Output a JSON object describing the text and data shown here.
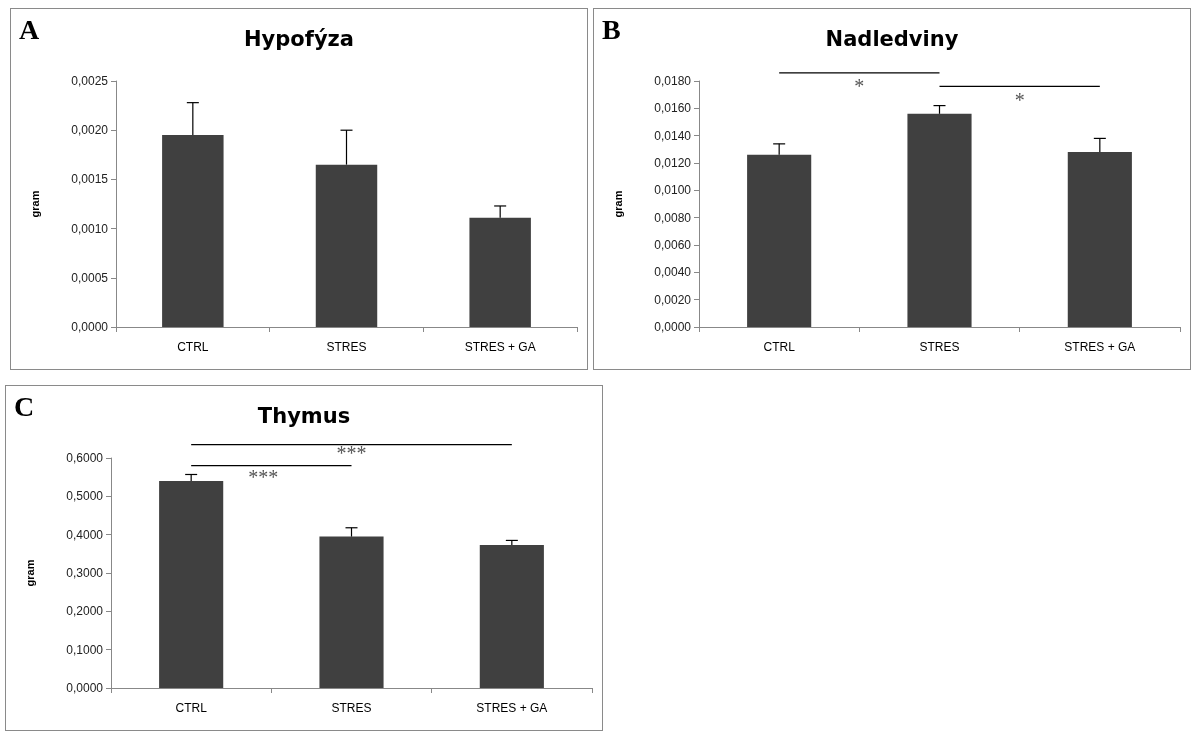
{
  "chart_data": [
    {
      "type": "bar",
      "title": "Hypofýza",
      "ylabel": "gram",
      "annotations": [
        "A"
      ],
      "categories": [
        "CTRL",
        "STRES",
        "STRES + GA"
      ],
      "values": [
        0.00195,
        0.00165,
        0.00111
      ],
      "errors": [
        [
          0.00195,
          0.00228
        ],
        [
          0.00165,
          0.002
        ],
        [
          0.00111,
          0.00123
        ]
      ],
      "color": "#404040",
      "ylim": [
        0,
        0.0025
      ],
      "yticks": [
        {
          "value": 0,
          "label": "0,0000"
        },
        {
          "value": 0.0005,
          "label": "0,0005"
        },
        {
          "value": 0.001,
          "label": "0,0010"
        },
        {
          "value": 0.0015,
          "label": "0,0015"
        },
        {
          "value": 0.002,
          "label": "0,0020"
        },
        {
          "value": 0.0025,
          "label": "0,0025"
        }
      ],
      "grid": false
    },
    {
      "type": "bar",
      "title": "Nadledviny",
      "ylabel": "gram",
      "annotations": [
        "B",
        "*",
        "*"
      ],
      "categories": [
        "CTRL",
        "STRES",
        "STRES + GA"
      ],
      "values": [
        0.0126,
        0.0156,
        0.0128
      ],
      "errors": [
        [
          0.0126,
          0.0134
        ],
        [
          0.0156,
          0.0162
        ],
        [
          0.0128,
          0.0138
        ]
      ],
      "color": "#404040",
      "ylim": [
        0,
        0.018
      ],
      "yticks": [
        {
          "value": 0,
          "label": "0,0000"
        },
        {
          "value": 0.002,
          "label": "0,0020"
        },
        {
          "value": 0.004,
          "label": "0,0040"
        },
        {
          "value": 0.006,
          "label": "0,0060"
        },
        {
          "value": 0.008,
          "label": "0,0080"
        },
        {
          "value": 0.01,
          "label": "0,0100"
        },
        {
          "value": 0.012,
          "label": "0,0120"
        },
        {
          "value": 0.014,
          "label": "0,0140"
        },
        {
          "value": 0.016,
          "label": "0,0160"
        },
        {
          "value": 0.018,
          "label": "0,0180"
        }
      ],
      "grid": false
    },
    {
      "type": "bar",
      "title": "Thymus",
      "ylabel": "gram",
      "annotations": [
        "C",
        "***",
        "***"
      ],
      "categories": [
        "CTRL",
        "STRES",
        "STRES + GA"
      ],
      "values": [
        0.54,
        0.395,
        0.373
      ],
      "errors": [
        [
          0.54,
          0.557
        ],
        [
          0.395,
          0.418
        ],
        [
          0.373,
          0.385
        ]
      ],
      "color": "#404040",
      "ylim": [
        0,
        0.6
      ],
      "yticks": [
        {
          "value": 0,
          "label": "0,0000"
        },
        {
          "value": 0.1,
          "label": "0,1000"
        },
        {
          "value": 0.2,
          "label": "0,2000"
        },
        {
          "value": 0.3,
          "label": "0,3000"
        },
        {
          "value": 0.4,
          "label": "0,4000"
        },
        {
          "value": 0.5,
          "label": "0,5000"
        },
        {
          "value": 0.6,
          "label": "0,6000"
        }
      ],
      "grid": false
    }
  ]
}
